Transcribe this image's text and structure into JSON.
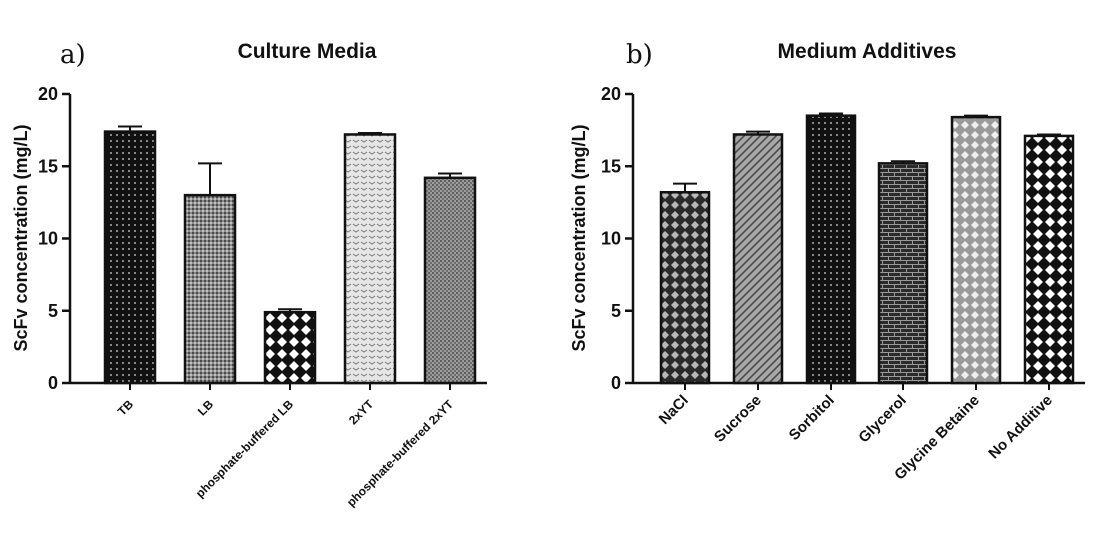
{
  "chart_data": [
    {
      "type": "bar",
      "panel": "a)",
      "title": "Culture Media",
      "xlabel": "",
      "ylabel": "ScFv concentration (mg/L)",
      "ylim": [
        0,
        20
      ],
      "yticks": [
        "0",
        "5",
        "10",
        "15",
        "20"
      ],
      "categories": [
        "TB",
        "LB",
        "phosphate-buffered LB",
        "2xYT",
        "phosphate-buffered 2xYT"
      ],
      "values": [
        17.4,
        13.0,
        4.9,
        17.2,
        14.2
      ],
      "errors": [
        0.35,
        2.2,
        0.2,
        0.1,
        0.3
      ],
      "patterns": [
        "dots-dark",
        "grid-mid",
        "diamond-dark",
        "chevron-light",
        "checker-mid"
      ]
    },
    {
      "type": "bar",
      "panel": "b)",
      "title": "Medium Additives",
      "xlabel": "",
      "ylabel": "ScFv concentration (mg/L)",
      "ylim": [
        0,
        20
      ],
      "yticks": [
        "0",
        "5",
        "10",
        "15",
        "20"
      ],
      "categories": [
        "NaCl",
        "Sucrose",
        "Sorbitol",
        "Glycerol",
        "Glycine Betaine",
        "No Additive"
      ],
      "values": [
        13.2,
        17.2,
        18.5,
        15.2,
        18.4,
        17.1
      ],
      "errors": [
        0.6,
        0.2,
        0.15,
        0.15,
        0.1,
        0.1
      ],
      "patterns": [
        "diamond-mid",
        "weave-mid",
        "dots-dark",
        "brick-dark",
        "diamond-light",
        "diamond-dark"
      ]
    }
  ]
}
